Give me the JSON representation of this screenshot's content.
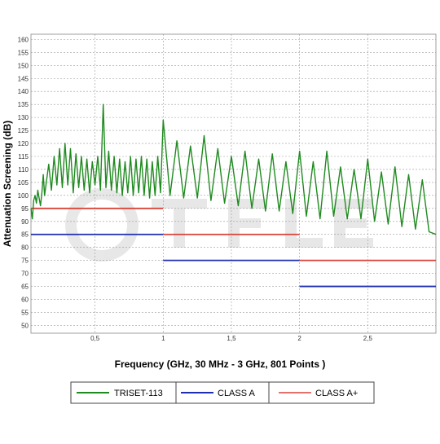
{
  "chart_data": {
    "type": "line",
    "title": "",
    "xlabel": "Frequency (GHz, 30 MHz - 3 GHz, 801 Points )",
    "ylabel": "Attenuation Screening (dB)",
    "xlim": [
      0.03,
      3.0
    ],
    "ylim": [
      47,
      162
    ],
    "grid": true,
    "legend_position": "bottom",
    "x_ticks": [
      0.5,
      1,
      1.5,
      2,
      2.5
    ],
    "x_tick_labels": [
      "0,5",
      "1",
      "1,5",
      "2",
      "2,5"
    ],
    "y_ticks": [
      50,
      55,
      60,
      65,
      70,
      75,
      80,
      85,
      90,
      95,
      100,
      105,
      110,
      115,
      120,
      125,
      130,
      135,
      140,
      145,
      150,
      155,
      160
    ],
    "y_tick_labels": [
      "50",
      "55",
      "60",
      "65",
      "70",
      "75",
      "80",
      "85",
      "90",
      "95",
      "100",
      "105",
      "110",
      "115",
      "120",
      "125",
      "130",
      "135",
      "140",
      "145",
      "150",
      "155",
      "160"
    ],
    "series": [
      {
        "name": "TRISET-113",
        "color": "#1f8a1f",
        "kind": "curve",
        "x": [
          0.03,
          0.04,
          0.05,
          0.06,
          0.07,
          0.08,
          0.09,
          0.1,
          0.11,
          0.12,
          0.13,
          0.14,
          0.16,
          0.18,
          0.2,
          0.22,
          0.24,
          0.26,
          0.28,
          0.3,
          0.32,
          0.34,
          0.36,
          0.38,
          0.4,
          0.42,
          0.44,
          0.46,
          0.48,
          0.5,
          0.52,
          0.54,
          0.56,
          0.58,
          0.6,
          0.62,
          0.64,
          0.66,
          0.68,
          0.7,
          0.72,
          0.74,
          0.76,
          0.78,
          0.8,
          0.82,
          0.84,
          0.86,
          0.88,
          0.9,
          0.92,
          0.94,
          0.96,
          0.98,
          1.0,
          1.05,
          1.1,
          1.15,
          1.2,
          1.25,
          1.3,
          1.35,
          1.4,
          1.45,
          1.5,
          1.55,
          1.6,
          1.65,
          1.7,
          1.75,
          1.8,
          1.85,
          1.9,
          1.95,
          2.0,
          2.05,
          2.1,
          2.15,
          2.2,
          2.25,
          2.3,
          2.35,
          2.4,
          2.45,
          2.5,
          2.55,
          2.6,
          2.65,
          2.7,
          2.75,
          2.8,
          2.85,
          2.9,
          2.95,
          3.0
        ],
        "y": [
          95,
          91,
          98,
          100,
          97,
          102,
          99,
          96,
          101,
          108,
          100,
          104,
          112,
          102,
          115,
          104,
          118,
          103,
          120,
          104,
          118,
          101,
          116,
          103,
          115,
          102,
          114,
          101,
          113,
          104,
          115,
          102,
          135,
          103,
          117,
          102,
          115,
          101,
          114,
          100,
          113,
          101,
          115,
          100,
          114,
          101,
          115,
          100,
          114,
          99,
          113,
          100,
          115,
          101,
          129,
          100,
          121,
          99,
          119,
          99,
          123,
          98,
          118,
          97,
          115,
          96,
          117,
          95,
          114,
          94,
          116,
          94,
          113,
          93,
          117,
          92,
          113,
          91,
          117,
          92,
          111,
          91,
          110,
          91,
          114,
          90,
          109,
          89,
          111,
          88,
          108,
          87,
          106,
          86,
          85
        ]
      },
      {
        "name": "CLASS A",
        "color": "#1f2fb0",
        "kind": "steps",
        "segments": [
          {
            "x0": 0.03,
            "x1": 1.0,
            "y": 85
          },
          {
            "x0": 1.0,
            "x1": 2.0,
            "y": 75
          },
          {
            "x0": 2.0,
            "x1": 3.0,
            "y": 65
          }
        ]
      },
      {
        "name": "CLASS  A+",
        "color": "#d9433a",
        "kind": "steps",
        "segments": [
          {
            "x0": 0.03,
            "x1": 1.0,
            "y": 95
          },
          {
            "x0": 1.0,
            "x1": 2.0,
            "y": 85
          },
          {
            "x0": 2.0,
            "x1": 3.0,
            "y": 75
          }
        ]
      }
    ]
  },
  "legend": {
    "items": [
      {
        "label": "TRISET-113",
        "color": "#1f8a1f"
      },
      {
        "label": "CLASS A",
        "color": "#1f2fb0"
      },
      {
        "label": "CLASS  A+",
        "color": "#d9433a"
      }
    ]
  }
}
